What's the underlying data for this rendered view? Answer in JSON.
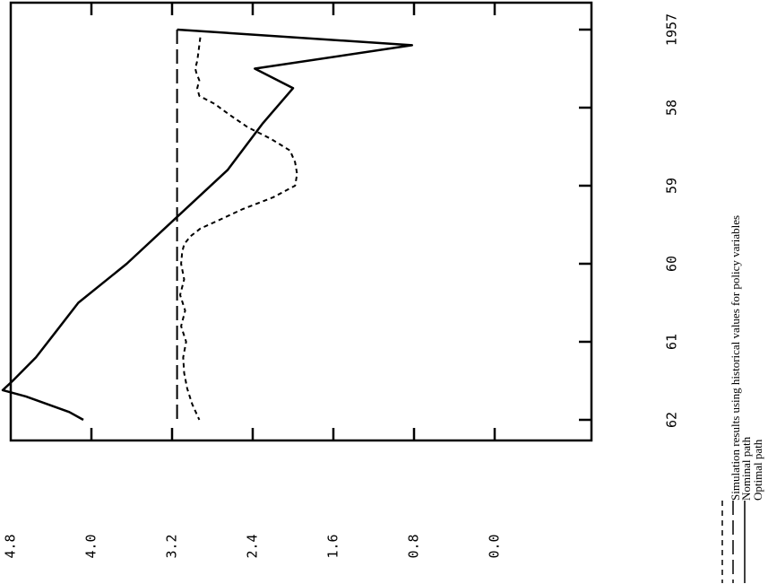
{
  "chart_data": {
    "type": "line",
    "orientation": "rotated 90 degrees counter-clockwise",
    "xlabel": "",
    "ylabel": "",
    "x_ticks": [
      "1957",
      "58",
      "59",
      "60",
      "61",
      "62"
    ],
    "y_ticks": [
      "0.0",
      "0.8",
      "1.6",
      "2.4",
      "3.2",
      "4.0",
      "4.8"
    ],
    "xlim": [
      1957,
      1962
    ],
    "ylim": [
      0.0,
      4.8
    ],
    "grid": false,
    "legend_position": "bottom-right",
    "series": [
      {
        "name": "Simulation results using historical values for policy variables",
        "style": "dashed",
        "x": [
          1957.1,
          1957.2,
          1957.3,
          1957.4,
          1957.5,
          1957.55,
          1957.65,
          1957.75,
          1957.85,
          1957.95,
          1958.1,
          1958.25,
          1958.4,
          1958.55,
          1958.7,
          1958.85,
          1959.0,
          1959.15,
          1959.3,
          1959.45,
          1959.55,
          1959.65,
          1959.75,
          1959.85,
          1960.0,
          1960.2,
          1960.4,
          1960.6,
          1960.8,
          1961.0,
          1961.2,
          1961.4,
          1961.6,
          1961.8,
          1962.0
        ],
        "values": [
          2.92,
          2.93,
          2.94,
          2.95,
          2.97,
          2.96,
          2.93,
          2.95,
          2.93,
          2.78,
          2.62,
          2.45,
          2.22,
          2.03,
          1.98,
          1.96,
          1.98,
          2.2,
          2.5,
          2.75,
          2.92,
          3.02,
          3.08,
          3.1,
          3.11,
          3.08,
          3.12,
          3.07,
          3.11,
          3.06,
          3.09,
          3.08,
          3.05,
          3.0,
          2.93
        ]
      },
      {
        "name": "Nominal path",
        "style": "long-dash",
        "x": [
          1957.0,
          1962.0
        ],
        "values": [
          3.15,
          3.15
        ]
      },
      {
        "name": "Optimal path",
        "style": "solid",
        "x": [
          1957.0,
          1957.2,
          1957.5,
          1957.75,
          1958.2,
          1958.8,
          1959.4,
          1960.0,
          1960.5,
          1960.9,
          1961.2,
          1961.5,
          1961.62,
          1961.7,
          1961.9,
          1962.0
        ],
        "values": [
          3.15,
          0.82,
          2.38,
          2.0,
          2.3,
          2.65,
          3.15,
          3.65,
          4.13,
          4.37,
          4.55,
          4.78,
          4.88,
          4.65,
          4.22,
          4.08
        ]
      }
    ]
  }
}
